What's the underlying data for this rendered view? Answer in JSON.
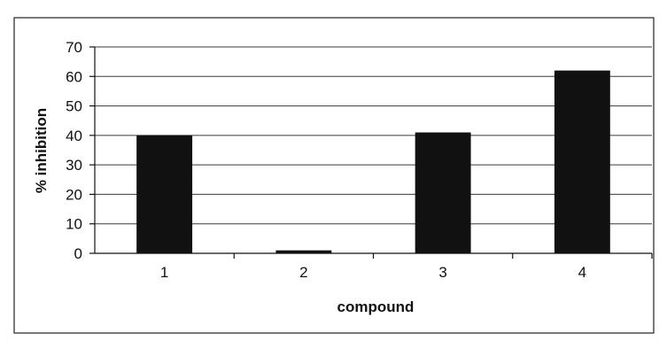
{
  "chart_data": {
    "type": "bar",
    "title": "",
    "xlabel": "compound",
    "ylabel": "% inhibition",
    "categories": [
      "1",
      "2",
      "3",
      "4"
    ],
    "values": [
      40,
      1,
      41,
      62
    ],
    "ylim": [
      0,
      70
    ],
    "yticks": [
      "0",
      "10",
      "20",
      "30",
      "40",
      "50",
      "60",
      "70"
    ],
    "grid": true,
    "legend": "none",
    "bar_color": "#111111",
    "grid_color": "#3a3a3a"
  }
}
